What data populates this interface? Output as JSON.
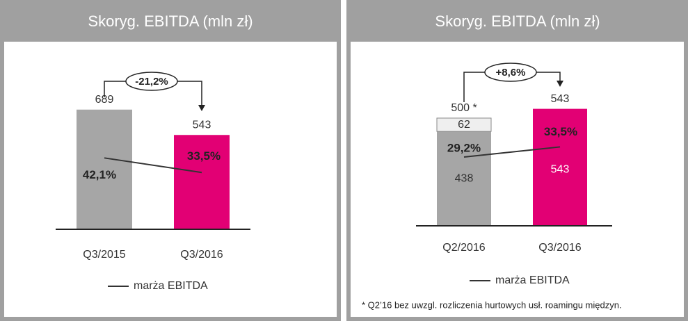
{
  "chart_data": [
    {
      "type": "bar",
      "title": "Skoryg. EBITDA (mln zł)",
      "categories": [
        "Q3/2015",
        "Q3/2016"
      ],
      "ylim": [
        0,
        800
      ],
      "y2lim": [
        0,
        82
      ],
      "series": [
        {
          "values": [
            689,
            543
          ],
          "colors": [
            "#a6a6a6",
            "#e20074"
          ],
          "value_labels_position": "above"
        },
        {
          "name": "marża EBITDA",
          "type": "line",
          "axis": "y2",
          "color": "#333333",
          "values": [
            42.1,
            33.5
          ],
          "value_labels": [
            "42,1%",
            "33,5%"
          ]
        }
      ],
      "change_label": "-21,2%"
    },
    {
      "type": "bar",
      "title": "Skoryg. EBITDA (mln zł)",
      "categories": [
        "Q2/2016",
        "Q3/2016"
      ],
      "ylim": [
        0,
        645
      ],
      "y2lim": [
        0,
        59
      ],
      "series": [
        {
          "values": [
            438,
            543
          ],
          "colors": [
            "#a6a6a6",
            "#e20074"
          ],
          "value_labels_position": "inside"
        },
        {
          "values": [
            62,
            null
          ],
          "colors": [
            "#efefef",
            null
          ],
          "value_labels_position": "inside"
        },
        {
          "name": "marża EBITDA",
          "type": "line",
          "axis": "y2",
          "color": "#333333",
          "values": [
            29.2,
            33.5
          ],
          "value_labels": [
            "29,2%",
            "33,5%"
          ]
        }
      ],
      "totals": [
        500,
        543
      ],
      "total_labels": [
        "500 *",
        "543"
      ],
      "change_label": "+8,6%",
      "footnote": "* Q2’16 bez uwzgl. rozliczenia hurtowych usł. roamingu międzyn."
    }
  ]
}
